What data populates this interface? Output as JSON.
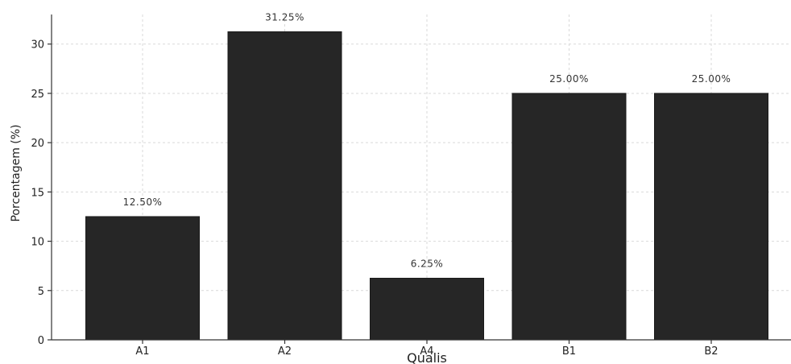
{
  "chart_data": {
    "type": "bar",
    "title": "",
    "xlabel": "Qualis",
    "ylabel": "Porcentagem (%)",
    "categories": [
      "A1",
      "A2",
      "A4",
      "B1",
      "B2"
    ],
    "values": [
      12.5,
      31.25,
      6.25,
      25.0,
      25.0
    ],
    "data_labels": [
      "12.50%",
      "31.25%",
      "6.25%",
      "25.00%",
      "25.00%"
    ],
    "ylim": [
      0,
      33
    ],
    "yticks": [
      0,
      5,
      10,
      15,
      20,
      25,
      30
    ],
    "grid": true,
    "bar_color": "#262626"
  }
}
